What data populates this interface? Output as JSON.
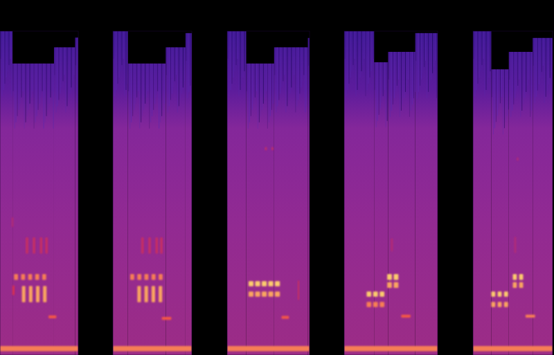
{
  "chart_data": [
    {
      "type": "spectrogram",
      "xlim": [
        0,
        100
      ],
      "ylim": [
        0,
        100
      ],
      "tick_labels": false,
      "ceiling_start": [
        0,
        16,
        69,
        96
      ],
      "ceiling": [
        100,
        90,
        95,
        98
      ],
      "events": {
        "t": [
          18,
          27,
          36,
          45,
          54,
          28,
          37,
          46,
          55,
          33,
          42,
          51,
          58,
          16,
          15,
          62,
          0
        ],
        "f": [
          24.1,
          24.1,
          24.1,
          24.1,
          24.1,
          18.8,
          18.8,
          18.8,
          18.8,
          33.8,
          33.8,
          33.8,
          33.8,
          20,
          41,
          11.8,
          2
        ],
        "dur": [
          5,
          5,
          5,
          5,
          5,
          4.5,
          4.5,
          4.5,
          4.5,
          3,
          3,
          3,
          3,
          2.5,
          2,
          10,
          100
        ],
        "bw": [
          1.8,
          1.8,
          1.8,
          1.8,
          1.8,
          5,
          5,
          5,
          5,
          5,
          5,
          5,
          5,
          3,
          3,
          0.9,
          1.6
        ],
        "level": [
          0.85,
          0.85,
          0.85,
          0.85,
          0.85,
          0.9,
          0.9,
          0.9,
          0.9,
          0.65,
          0.65,
          0.65,
          0.65,
          0.7,
          0.6,
          0.8,
          0.85
        ]
      }
    },
    {
      "type": "spectrogram",
      "xlim": [
        0,
        100
      ],
      "ylim": [
        0,
        100
      ],
      "tick_labels": false,
      "ceiling_start": [
        0,
        19,
        67,
        92
      ],
      "ceiling": [
        100,
        90,
        95,
        99.4
      ],
      "events": {
        "t": [
          22,
          31,
          40,
          49,
          58,
          31,
          40,
          49,
          58,
          36,
          45,
          54,
          60,
          62,
          0
        ],
        "f": [
          24.1,
          24.1,
          24.1,
          24.1,
          24.1,
          18.8,
          18.8,
          18.8,
          18.8,
          33.8,
          33.8,
          33.8,
          33.8,
          11.3,
          2
        ],
        "dur": [
          5,
          5,
          5,
          5,
          5,
          4.5,
          4.5,
          4.5,
          4.5,
          3,
          3,
          3,
          3,
          12,
          100
        ],
        "bw": [
          1.8,
          1.8,
          1.8,
          1.8,
          1.8,
          5,
          5,
          5,
          5,
          5,
          5,
          5,
          5,
          0.9,
          1.6
        ],
        "level": [
          0.85,
          0.85,
          0.85,
          0.85,
          0.85,
          0.9,
          0.9,
          0.9,
          0.9,
          0.65,
          0.65,
          0.65,
          0.65,
          0.8,
          0.85
        ]
      }
    },
    {
      "type": "spectrogram",
      "xlim": [
        0,
        100
      ],
      "ylim": [
        0,
        100
      ],
      "tick_labels": false,
      "ceiling_start": [
        0,
        23,
        57,
        98
      ],
      "ceiling": [
        100,
        90,
        95,
        97.9
      ],
      "events": {
        "t": [
          26,
          34,
          42,
          50,
          58,
          26,
          34,
          42,
          50,
          58,
          46,
          54,
          66,
          86,
          0
        ],
        "f": [
          22,
          22,
          22,
          22,
          22,
          18.8,
          18.8,
          18.8,
          18.8,
          18.8,
          63.7,
          63.7,
          11.6,
          20,
          2
        ],
        "dur": [
          6,
          6,
          6,
          6,
          6,
          6,
          6,
          6,
          6,
          6,
          2,
          2,
          9,
          1.2,
          100
        ],
        "bw": [
          1.6,
          1.6,
          1.6,
          1.6,
          1.6,
          1.6,
          1.6,
          1.6,
          1.6,
          1.6,
          1,
          1,
          0.9,
          6,
          1.6
        ],
        "level": [
          0.95,
          0.95,
          0.95,
          0.95,
          0.95,
          0.9,
          0.9,
          0.9,
          0.9,
          0.9,
          0.65,
          0.65,
          0.8,
          0.7,
          0.85
        ]
      }
    },
    {
      "type": "spectrogram",
      "xlim": [
        0,
        100
      ],
      "ylim": [
        0,
        100
      ],
      "tick_labels": false,
      "ceiling_start": [
        0,
        32,
        47,
        76
      ],
      "ceiling": [
        100,
        90.4,
        93.6,
        99.4
      ],
      "events": {
        "t": [
          24,
          31,
          38,
          24,
          31,
          38,
          46,
          53,
          46,
          53,
          50,
          61,
          0
        ],
        "f": [
          18.8,
          18.8,
          18.8,
          15.6,
          15.6,
          15.6,
          24.1,
          24.1,
          21.6,
          21.6,
          34,
          12,
          2
        ],
        "dur": [
          5,
          5,
          5,
          5,
          5,
          5,
          5,
          5,
          5,
          5,
          2,
          10,
          100
        ],
        "bw": [
          1.6,
          1.6,
          1.6,
          1.6,
          1.6,
          1.6,
          1.8,
          1.8,
          1.8,
          1.8,
          4,
          0.9,
          1.6
        ],
        "level": [
          0.95,
          0.95,
          0.95,
          0.85,
          0.85,
          0.85,
          0.95,
          0.95,
          0.9,
          0.9,
          0.6,
          0.8,
          0.85
        ]
      }
    },
    {
      "type": "spectrogram",
      "xlim": [
        0,
        100
      ],
      "ylim": [
        0,
        100
      ],
      "tick_labels": false,
      "ceiling_start": [
        0,
        23,
        45,
        75
      ],
      "ceiling": [
        100,
        88.2,
        93.6,
        97.9
      ],
      "events": {
        "t": [
          23,
          31,
          39,
          23,
          31,
          39,
          50,
          58,
          50,
          58,
          52,
          55,
          66,
          0
        ],
        "f": [
          18.8,
          18.8,
          18.8,
          15.6,
          15.6,
          15.6,
          24.1,
          24.1,
          21.6,
          21.6,
          34,
          60.5,
          12,
          2
        ],
        "dur": [
          5,
          5,
          5,
          5,
          5,
          5,
          5,
          5,
          5,
          5,
          2,
          2,
          12,
          100
        ],
        "bw": [
          1.6,
          1.6,
          1.6,
          1.6,
          1.6,
          1.6,
          1.8,
          1.8,
          1.8,
          1.8,
          5,
          1,
          0.9,
          1.6
        ],
        "level": [
          0.95,
          0.95,
          0.95,
          0.9,
          0.9,
          0.9,
          0.95,
          0.95,
          0.9,
          0.9,
          0.6,
          0.6,
          0.85,
          0.85
        ]
      }
    }
  ]
}
